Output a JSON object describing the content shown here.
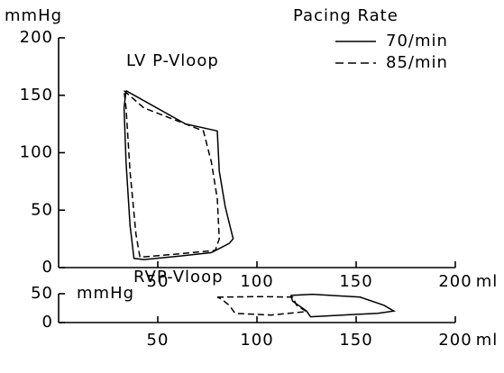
{
  "chart_data": [
    {
      "type": "line",
      "title": "LV P-Vloop",
      "y_label": "mmHg",
      "x_label": "ml",
      "legend_title": "Pacing Rate",
      "legend": "upper right",
      "xlim": [
        0,
        200
      ],
      "ylim": [
        0,
        200
      ],
      "xticks": [
        50,
        100,
        150,
        200
      ],
      "yticks": [
        0,
        50,
        100,
        150,
        200
      ],
      "series": [
        {
          "name": "70/min",
          "color": "#000000",
          "dash": "solid",
          "x": [
            34,
            64,
            80,
            81,
            84,
            88,
            86,
            77,
            61,
            43,
            38,
            36,
            34,
            33,
            34
          ],
          "values": [
            154,
            125,
            119,
            84,
            53,
            25,
            21,
            13,
            10,
            7,
            8,
            37,
            92,
            139,
            154
          ]
        },
        {
          "name": "85/min",
          "color": "#000000",
          "dash": "dashed",
          "x": [
            33,
            43,
            61,
            73,
            77,
            80,
            81,
            79,
            61,
            41,
            39,
            36,
            34,
            33
          ],
          "values": [
            154,
            139,
            127,
            119,
            92,
            60,
            25,
            15,
            12,
            9,
            29,
            84,
            139,
            154
          ]
        }
      ]
    },
    {
      "type": "line",
      "title": "RVP-Vloop",
      "y_label": "mmHg",
      "x_label": "ml",
      "xlim": [
        0,
        200
      ],
      "ylim": [
        0,
        50
      ],
      "xticks": [
        50,
        100,
        150,
        200
      ],
      "yticks": [
        0,
        50
      ],
      "series": [
        {
          "color": "#000000",
          "dash": "solid",
          "x": [
            117,
            128,
            152,
            164,
            169,
            161,
            143,
            127,
            125,
            118,
            117
          ],
          "values": [
            47,
            49,
            44,
            30,
            20,
            16,
            13,
            10,
            20,
            37,
            47
          ]
        },
        {
          "color": "#000000",
          "dash": "dashed",
          "x": [
            80,
            102,
            118,
            120,
            125,
            107,
            89,
            86,
            82,
            80
          ],
          "values": [
            44,
            45,
            44,
            30,
            19,
            13,
            16,
            30,
            41,
            44
          ]
        }
      ]
    }
  ]
}
